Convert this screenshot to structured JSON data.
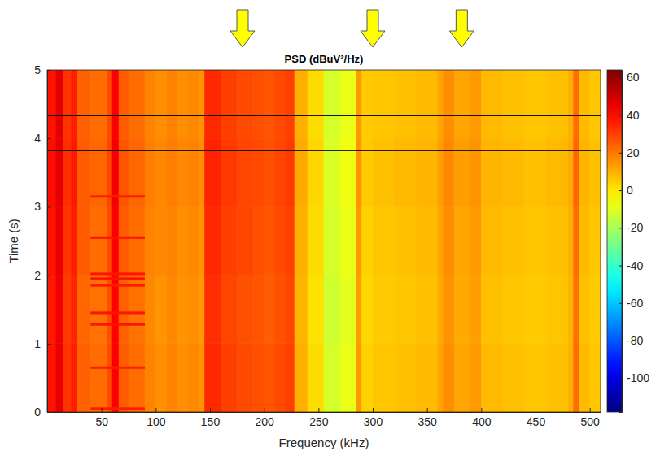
{
  "chart_data": {
    "type": "heatmap",
    "title": "PSD (dBuV²/Hz)",
    "x_label": "Frequency (kHz)",
    "y_label": "Time (s)",
    "xlim": [
      0,
      510
    ],
    "xticks": [
      50,
      100,
      150,
      200,
      250,
      300,
      350,
      400,
      450,
      500
    ],
    "ylim": [
      0,
      5
    ],
    "yticks": [
      0,
      1,
      2,
      3,
      4,
      5
    ],
    "freq_edges": [
      0,
      8,
      15,
      22,
      28,
      40,
      55,
      60,
      66,
      75,
      90,
      100,
      110,
      120,
      130,
      140,
      145,
      160,
      175,
      190,
      200,
      210,
      220,
      228,
      240,
      255,
      270,
      285,
      290,
      300,
      320,
      340,
      360,
      365,
      375,
      390,
      400,
      420,
      440,
      460,
      480,
      485,
      490,
      500,
      510
    ],
    "time_edges": [
      0,
      1,
      2,
      3,
      4,
      5
    ],
    "cells": [
      [
        38,
        45,
        32,
        36,
        24,
        22,
        28,
        42,
        25,
        22,
        18,
        16,
        18,
        16,
        17,
        15,
        34,
        30,
        28,
        27,
        26,
        28,
        30,
        10,
        2,
        -12,
        -8,
        14,
        4,
        6,
        7,
        8,
        12,
        16,
        12,
        14,
        8,
        7,
        6,
        7,
        10,
        22,
        8,
        6
      ],
      [
        37,
        44,
        31,
        35,
        23,
        21,
        27,
        41,
        24,
        21,
        17,
        15,
        17,
        15,
        16,
        14,
        33,
        29,
        27,
        26,
        25,
        27,
        29,
        9,
        1,
        -13,
        -9,
        13,
        3,
        5,
        6,
        7,
        11,
        15,
        11,
        13,
        7,
        6,
        5,
        6,
        9,
        21,
        7,
        5
      ],
      [
        38,
        45,
        32,
        36,
        25,
        22,
        28,
        42,
        25,
        22,
        18,
        17,
        18,
        16,
        17,
        15,
        34,
        30,
        29,
        27,
        26,
        28,
        30,
        10,
        2,
        -12,
        -8,
        14,
        4,
        6,
        7,
        8,
        12,
        16,
        12,
        14,
        8,
        7,
        6,
        7,
        10,
        22,
        8,
        6
      ],
      [
        39,
        46,
        33,
        37,
        25,
        23,
        29,
        43,
        26,
        23,
        19,
        17,
        19,
        17,
        18,
        16,
        35,
        31,
        29,
        28,
        27,
        29,
        31,
        11,
        3,
        -11,
        -7,
        15,
        5,
        7,
        8,
        9,
        13,
        17,
        13,
        15,
        9,
        8,
        7,
        8,
        11,
        23,
        9,
        7
      ],
      [
        38,
        46,
        32,
        36,
        24,
        22,
        28,
        42,
        25,
        22,
        18,
        16,
        18,
        16,
        17,
        15,
        34,
        30,
        28,
        27,
        26,
        28,
        30,
        10,
        2,
        -12,
        -8,
        14,
        5,
        6,
        7,
        8,
        12,
        16,
        12,
        14,
        8,
        7,
        6,
        7,
        10,
        22,
        8,
        6
      ]
    ],
    "bursts": {
      "band": [
        40,
        90
      ],
      "times": [
        0.05,
        0.65,
        1.28,
        1.45,
        1.85,
        1.95,
        2.02,
        2.55,
        3.15
      ],
      "values": [
        36,
        36,
        38,
        38,
        36,
        38,
        38,
        38,
        36
      ]
    },
    "hlines": [
      3.82,
      4.33
    ],
    "arrows": [
      180,
      300,
      382
    ],
    "colorbar": {
      "range": [
        -118,
        64
      ],
      "ticks": [
        -100,
        -80,
        -60,
        -40,
        -20,
        0,
        20,
        40,
        60
      ]
    }
  }
}
